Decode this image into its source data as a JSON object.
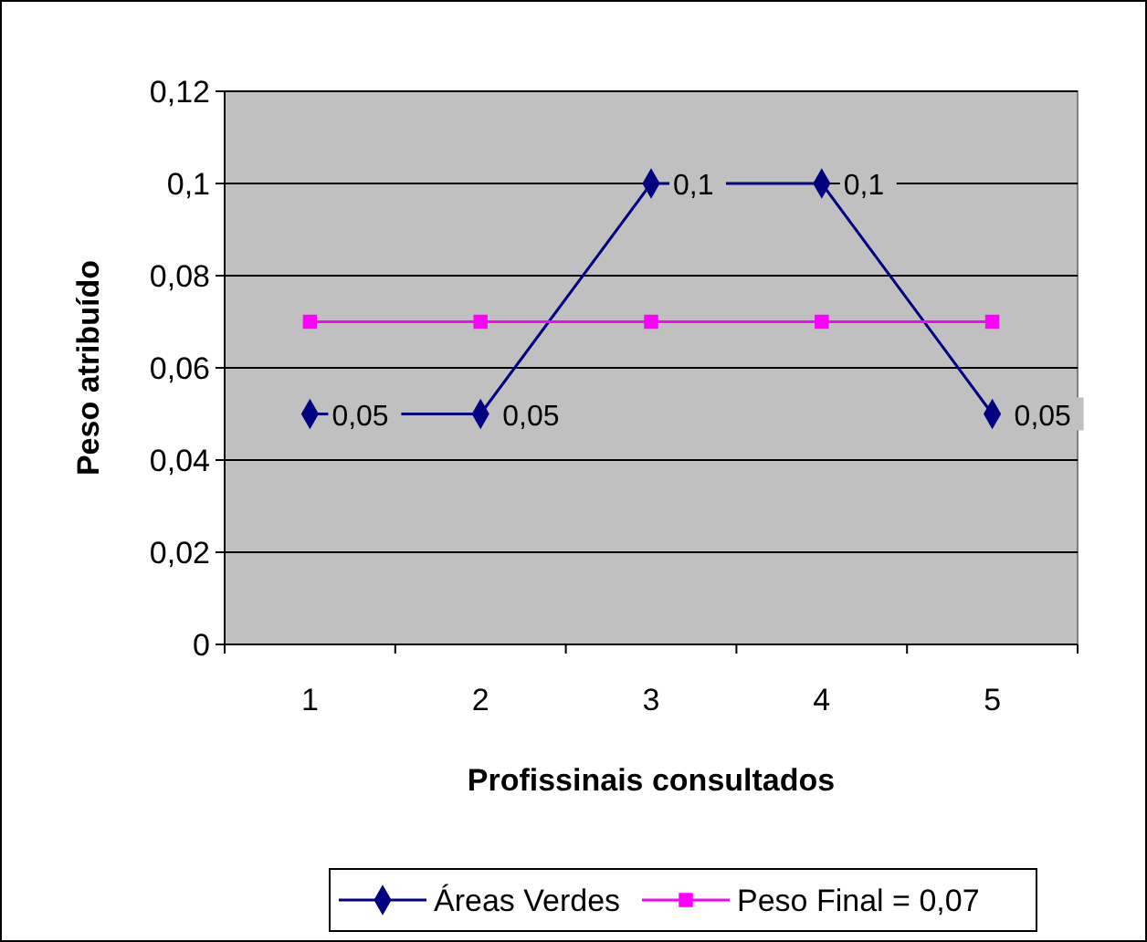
{
  "chart_data": {
    "type": "line",
    "xlabel": "Profissinais consultados",
    "ylabel": "Peso atribuído",
    "categories": [
      "1",
      "2",
      "3",
      "4",
      "5"
    ],
    "series": [
      {
        "name": "Áreas Verdes",
        "color": "#000080",
        "marker": "diamond",
        "values": [
          0.05,
          0.05,
          0.1,
          0.1,
          0.05
        ],
        "value_labels": [
          "0,05",
          "0,05",
          "0,1",
          "0,1",
          "0,05"
        ]
      },
      {
        "name": "Peso Final = 0,07",
        "color": "#ff00ff",
        "marker": "square",
        "values": [
          0.07,
          0.07,
          0.07,
          0.07,
          0.07
        ]
      }
    ],
    "ylim": [
      0,
      0.12
    ],
    "yticks": [
      {
        "value": 0,
        "label": "0"
      },
      {
        "value": 0.02,
        "label": "0,02"
      },
      {
        "value": 0.04,
        "label": "0,04"
      },
      {
        "value": 0.06,
        "label": "0,06"
      },
      {
        "value": 0.08,
        "label": "0,08"
      },
      {
        "value": 0.1,
        "label": "0,1"
      },
      {
        "value": 0.12,
        "label": "0,12"
      }
    ],
    "grid": "y",
    "legend": "bottom",
    "line_style": "solid"
  }
}
